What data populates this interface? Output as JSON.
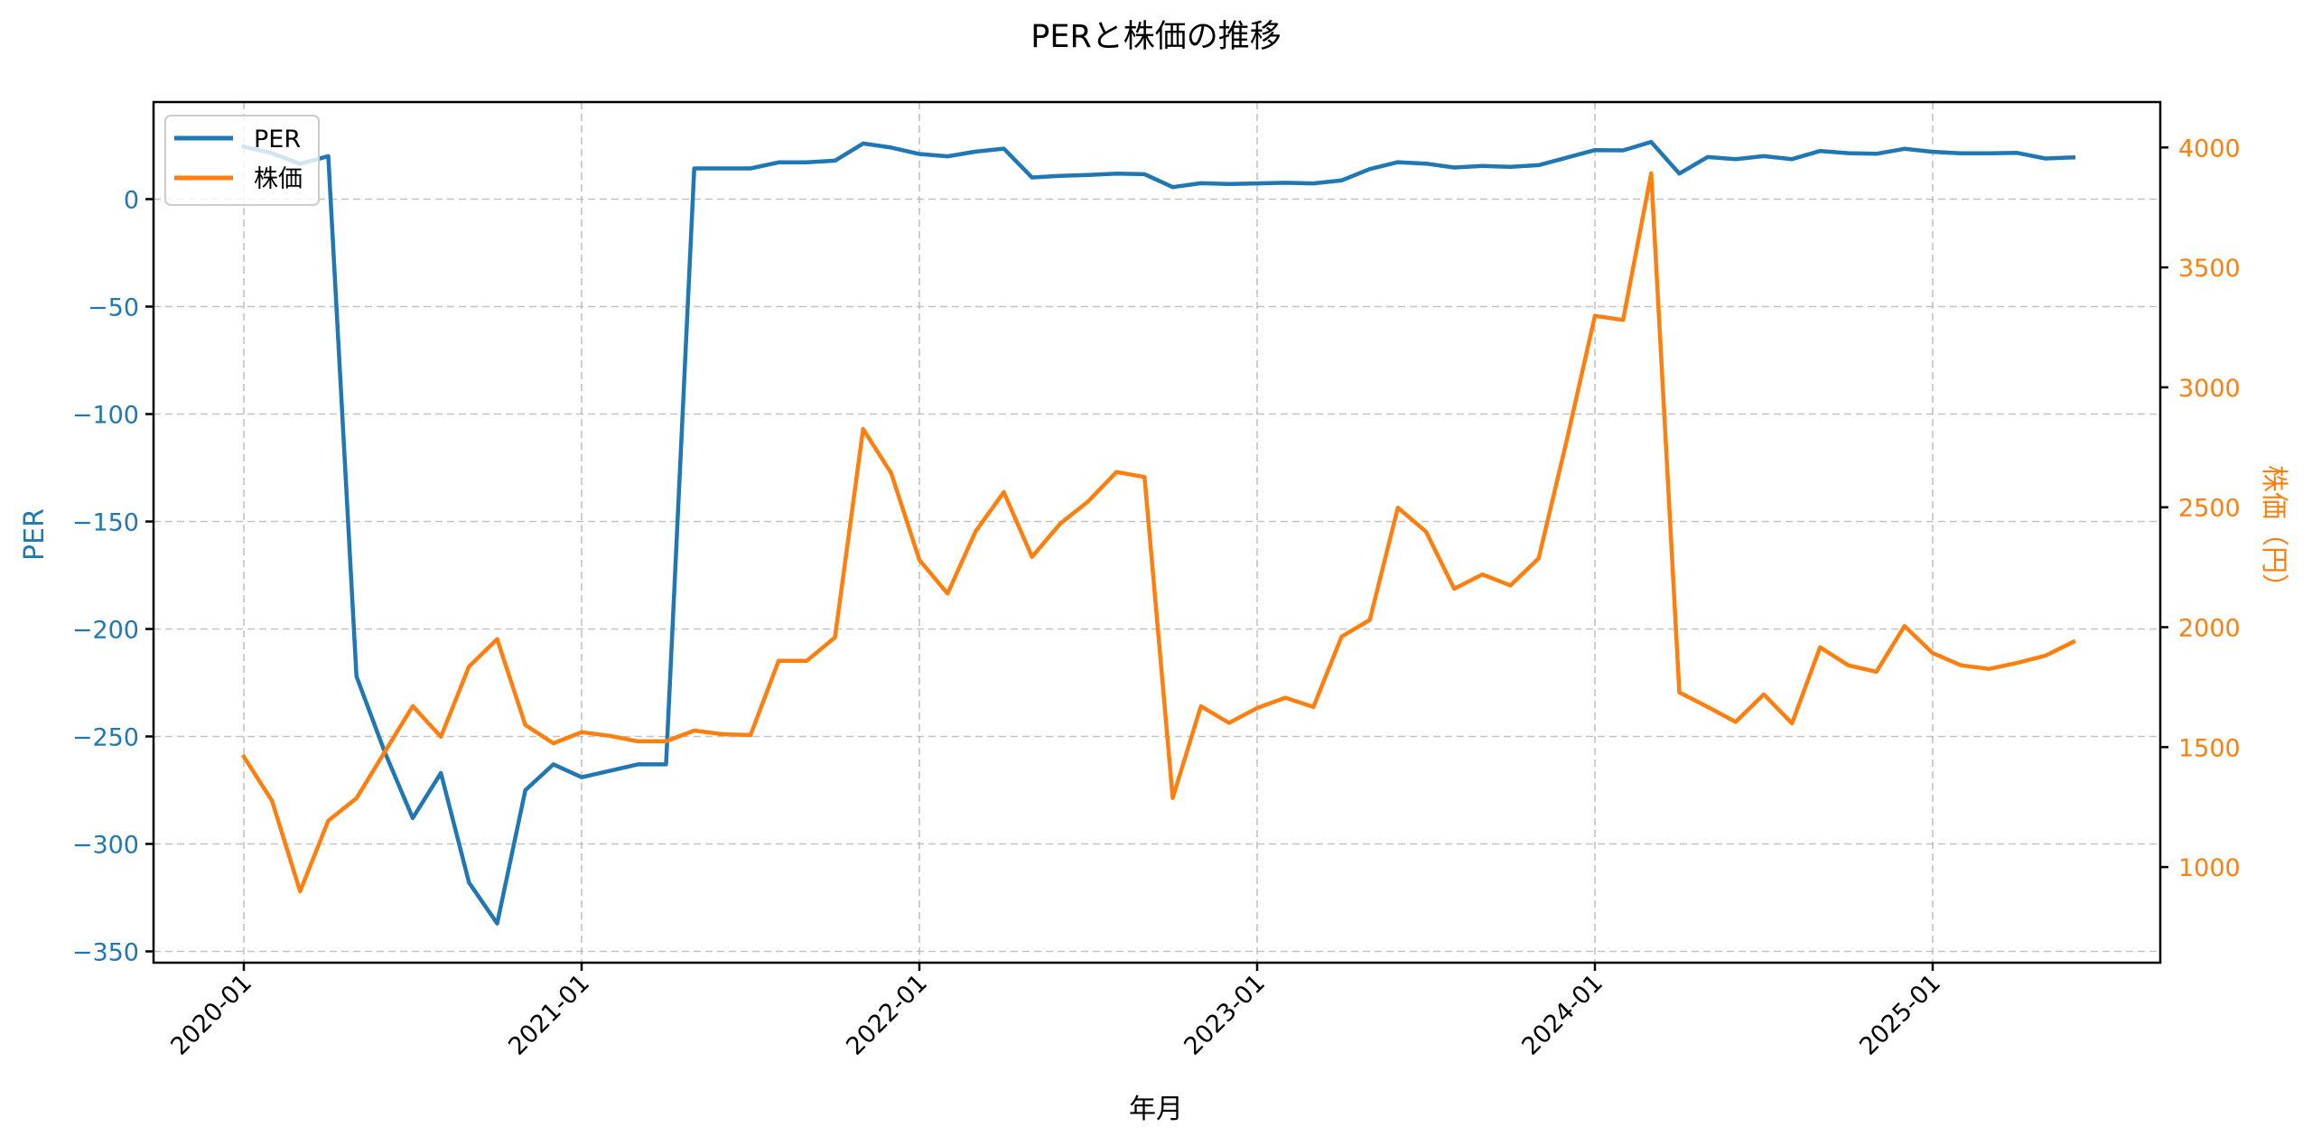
{
  "chart_data": {
    "type": "line",
    "title": "PERと株価の推移",
    "xlabel": "年月",
    "ylabel": "PER",
    "ylabel_right": "株価（円）",
    "grid": true,
    "legend_position": "upper left",
    "x_ticks": [
      "2020-01",
      "2021-01",
      "2022-01",
      "2023-01",
      "2024-01",
      "2025-01"
    ],
    "y_ticks_left": [
      0,
      -50,
      -100,
      -150,
      -200,
      -250,
      -300,
      -350
    ],
    "y_ticks_right": [
      1000,
      1500,
      2000,
      2500,
      3000,
      3500,
      4000
    ],
    "ylim_left": [
      -357,
      46
    ],
    "ylim_right": [
      620,
      4190
    ],
    "x": [
      "2020-01",
      "2020-02",
      "2020-03",
      "2020-04",
      "2020-05",
      "2020-06",
      "2020-07",
      "2020-08",
      "2020-09",
      "2020-10",
      "2020-11",
      "2020-12",
      "2021-01",
      "2021-02",
      "2021-03",
      "2021-04",
      "2021-05",
      "2021-06",
      "2021-07",
      "2021-08",
      "2021-09",
      "2021-10",
      "2021-11",
      "2021-12",
      "2022-01",
      "2022-02",
      "2022-03",
      "2022-04",
      "2022-05",
      "2022-06",
      "2022-07",
      "2022-08",
      "2022-09",
      "2022-10",
      "2022-11",
      "2022-12",
      "2023-01",
      "2023-02",
      "2023-03",
      "2023-04",
      "2023-05",
      "2023-06",
      "2023-07",
      "2023-08",
      "2023-09",
      "2023-10",
      "2023-11",
      "2023-12",
      "2024-01",
      "2024-02",
      "2024-03",
      "2024-04",
      "2024-05",
      "2024-06",
      "2024-07",
      "2024-08",
      "2024-09",
      "2024-10",
      "2024-11",
      "2024-12",
      "2025-01",
      "2025-02",
      "2025-03",
      "2025-04",
      "2025-05",
      "2025-06"
    ],
    "series": [
      {
        "name": "PER",
        "axis": "left",
        "color": "#1f77b4",
        "values": [
          24.4,
          21.4,
          16.4,
          20.0,
          -222,
          -257,
          -288,
          -267,
          -318,
          -337,
          -275,
          -263,
          -269,
          -266,
          -263,
          -263,
          14.3,
          14.3,
          14.3,
          17.1,
          17.1,
          17.9,
          25.9,
          24.0,
          21.0,
          19.9,
          22.1,
          23.5,
          10.1,
          10.8,
          11.2,
          11.9,
          11.6,
          5.6,
          7.4,
          7.0,
          7.3,
          7.6,
          7.3,
          8.7,
          14.0,
          17.2,
          16.5,
          14.7,
          15.4,
          15.0,
          15.8,
          19.3,
          22.8,
          22.7,
          26.6,
          11.9,
          19.6,
          18.6,
          20.0,
          18.6,
          22.4,
          21.4,
          21.1,
          23.4,
          22.0,
          21.3,
          21.3,
          21.5,
          18.9,
          19.4
        ]
      },
      {
        "name": "株価",
        "axis": "right",
        "color": "#ff7f0e",
        "values": [
          1460,
          1276,
          899,
          1193,
          1287,
          1479,
          1671,
          1543,
          1836,
          1950,
          1592,
          1516,
          1562,
          1547,
          1524,
          1524,
          1569,
          1554,
          1550,
          1860,
          1860,
          1957,
          2826,
          2642,
          2280,
          2140,
          2400,
          2563,
          2293,
          2431,
          2525,
          2647,
          2626,
          1288,
          1670,
          1601,
          1663,
          1706,
          1667,
          1961,
          2030,
          2498,
          2398,
          2160,
          2220,
          2174,
          2287,
          2779,
          3298,
          3281,
          3892,
          1728,
          1668,
          1605,
          1720,
          1599,
          1916,
          1841,
          1814,
          2005,
          1892,
          1841,
          1826,
          1851,
          1881,
          1939
        ]
      }
    ]
  },
  "legend": {
    "items": [
      {
        "label": "PER",
        "color": "#1f77b4"
      },
      {
        "label": "株価",
        "color": "#ff7f0e"
      }
    ]
  }
}
